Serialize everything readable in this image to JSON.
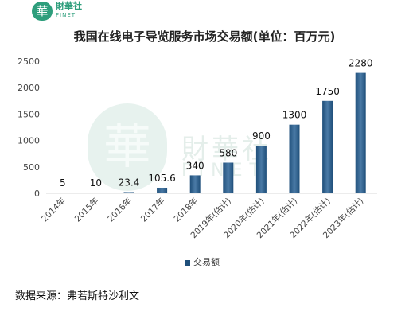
{
  "logo": {
    "glyph": "華",
    "name": "財華社",
    "sub": "FINET"
  },
  "watermark": {
    "glyph": "華",
    "name": "財華社",
    "sub": "FINET"
  },
  "source": "数据来源：弗若斯特沙利文",
  "colors": {
    "bar": "#1f4f7a",
    "bar_light": "#4a7aa6",
    "grid": "#d9d9d9",
    "brand": "#2e9e7c"
  },
  "chart_data": {
    "type": "bar",
    "title": "我国在线电子导览服务市场交易额(单位：百万元)",
    "categories": [
      "2014年",
      "2015年",
      "2016年",
      "2017年",
      "2018年",
      "2019年(估计)",
      "2020年(估计)",
      "2021年(估计)",
      "2022年(估计)",
      "2023年(估计)"
    ],
    "series": [
      {
        "name": "交易额",
        "values": [
          5,
          10,
          23.4,
          105.6,
          340,
          580,
          900,
          1300,
          1750,
          2280
        ]
      }
    ],
    "data_labels": [
      "5",
      "10",
      "23.4",
      "105.6",
      "340",
      "580",
      "900",
      "1300",
      "1750",
      "2280"
    ],
    "yticks": [
      0,
      500,
      1000,
      1500,
      2000,
      2500
    ],
    "ylim": [
      0,
      2500
    ],
    "xlabel": "",
    "ylabel": "",
    "grid": false,
    "legend": "bottom"
  }
}
